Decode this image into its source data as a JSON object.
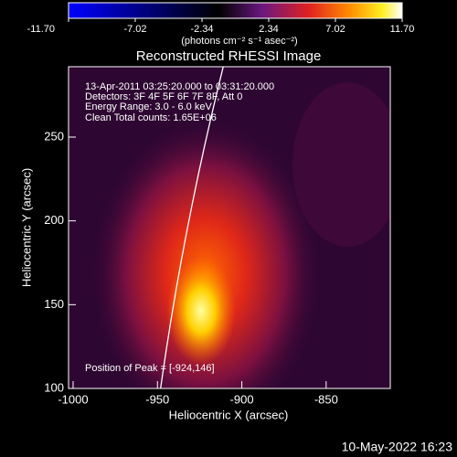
{
  "chart_data": {
    "type": "image",
    "title": "Reconstructed RHESSI Image",
    "x_label": "Heliocentric X (arcsec)",
    "y_label": "Heliocentric Y (arcsec)",
    "xlim": [
      -1002.7,
      -812
    ],
    "ylim": [
      100,
      292
    ],
    "xticks": [
      -1000,
      -950,
      -900,
      -850
    ],
    "yticks": [
      100,
      150,
      200,
      250
    ],
    "colorbar": {
      "label": "(photons cm⁻² s⁻¹ asec⁻²)",
      "lim": [
        -11.7,
        11.7
      ],
      "ticks": [
        {
          "value": -11.7,
          "label": "-11.70"
        },
        -7.02,
        -2.34,
        2.34,
        7.02,
        {
          "value": 11.7,
          "label": "11.70"
        }
      ]
    },
    "annotations": [
      "13-Apr-2011 03:25:20.000 to 03:31:20.000",
      "Detectors: 3F 4F 5F 6F 7F 8F, Att 0",
      "Energy Range: 3.0 - 6.0 keV",
      "Clean    Total counts: 1.65E+06"
    ],
    "peak_label": "Position of Peak = [-924,146]",
    "timestamp": "10-May-2022 16:23"
  }
}
